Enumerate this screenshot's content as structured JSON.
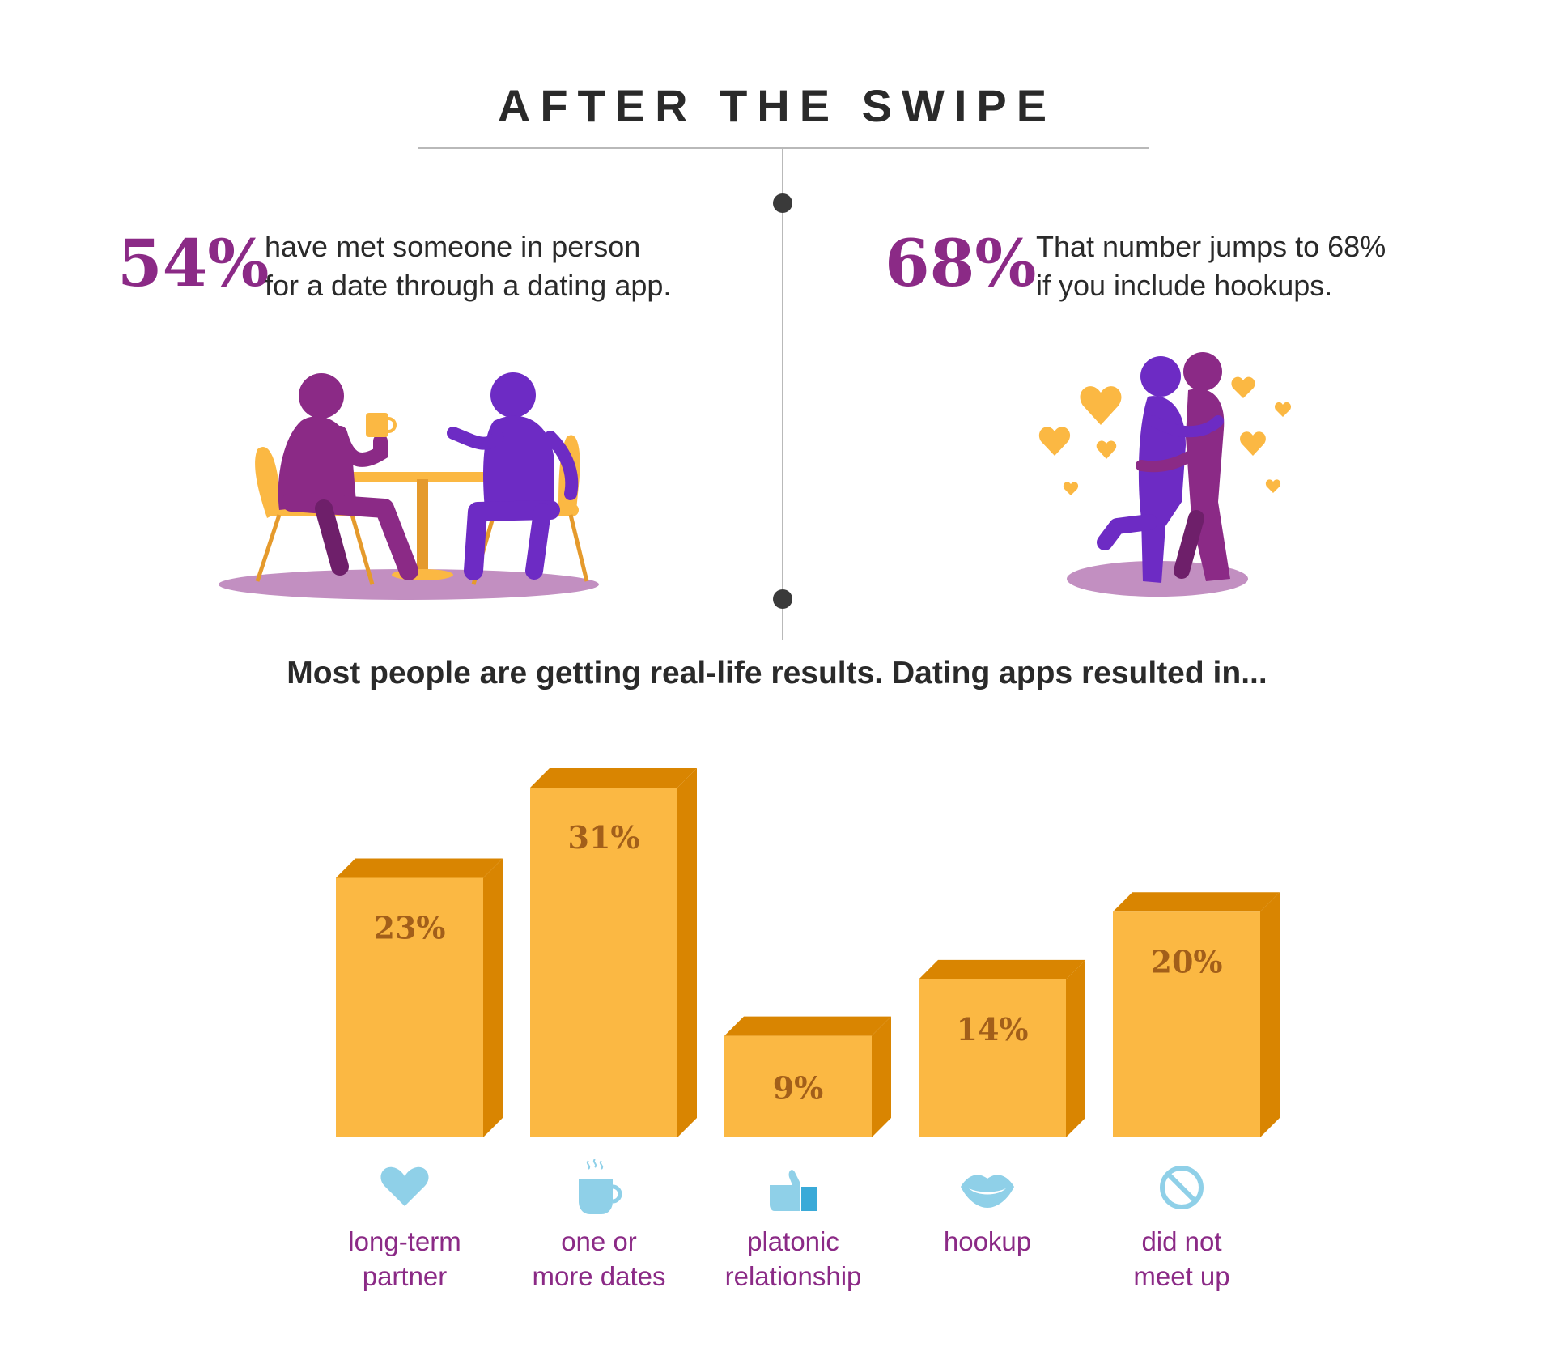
{
  "title": "AFTER THE SWIPE",
  "stats": [
    {
      "value": "54%",
      "lines": [
        "have met someone in person",
        "for a date through a dating app."
      ]
    },
    {
      "value": "68%",
      "lines": [
        "That number jumps to 68%",
        "if you include hookups."
      ]
    }
  ],
  "subheading": "Most people are getting real-life results. Dating apps resulted in...",
  "colors": {
    "accent_purple": "#8b2a86",
    "bar_front": "#fbb843",
    "bar_side": "#d98501",
    "bar_label": "#a25f1a",
    "icon_blue": "#8fd0e8",
    "text_dark": "#2a2a2a"
  },
  "chart_data": {
    "type": "bar",
    "title": "",
    "xlabel": "",
    "ylabel": "",
    "categories": [
      [
        "long-term",
        "partner"
      ],
      [
        "one or",
        "more dates"
      ],
      [
        "platonic",
        "relationship"
      ],
      [
        "hookup"
      ],
      [
        "did not",
        "meet up"
      ]
    ],
    "values": [
      23,
      31,
      9,
      14,
      20
    ],
    "value_labels": [
      "23%",
      "31%",
      "9%",
      "14%",
      "20%"
    ],
    "icons": [
      "heart-icon",
      "coffee-cup-icon",
      "thumbs-up-icon",
      "lips-icon",
      "no-sign-icon"
    ],
    "ylim": [
      0,
      31
    ],
    "grid": false,
    "legend": "none"
  }
}
